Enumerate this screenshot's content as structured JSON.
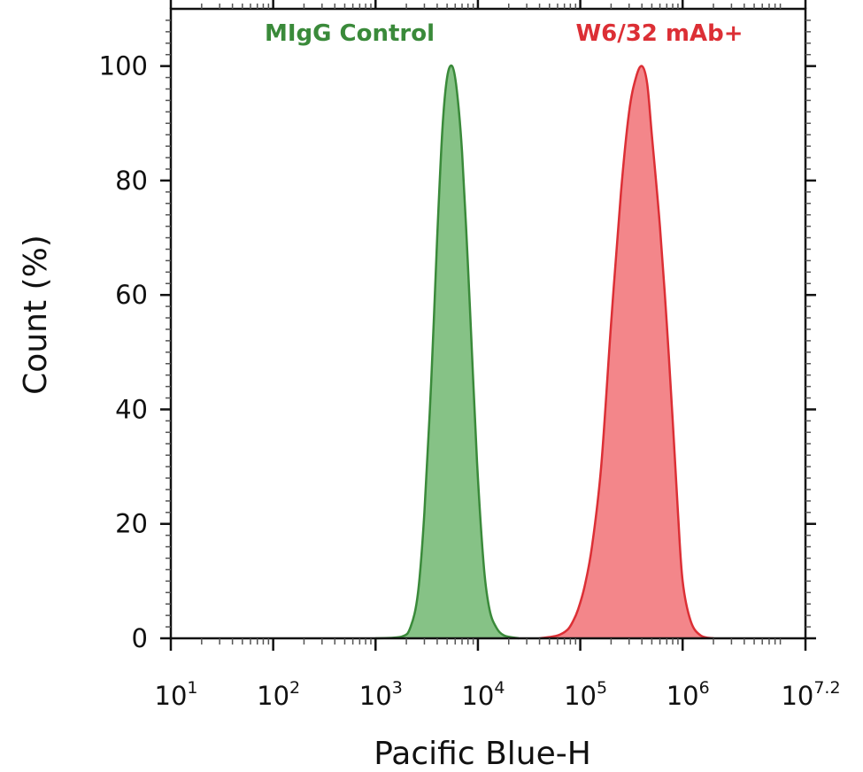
{
  "chart_data": {
    "type": "area",
    "xscale": "log",
    "xlabel": "Pacific Blue-H",
    "ylabel": "Count (%)",
    "xlim": [
      10,
      15848931.92
    ],
    "ylim": [
      0,
      110
    ],
    "x_ticks": [
      {
        "base": "10",
        "exp": "1"
      },
      {
        "base": "10",
        "exp": "2"
      },
      {
        "base": "10",
        "exp": "3"
      },
      {
        "base": "10",
        "exp": "4"
      },
      {
        "base": "10",
        "exp": "5"
      },
      {
        "base": "10",
        "exp": "6"
      },
      {
        "base": "10",
        "exp": "7.2"
      }
    ],
    "y_ticks": [
      "0",
      "20",
      "40",
      "60",
      "80",
      "100"
    ],
    "y_tick_values": [
      0,
      20,
      40,
      60,
      80,
      100
    ],
    "grid": false,
    "series": [
      {
        "name": "MIgG Control",
        "color": "#3a8a3a",
        "fill": "#86c286",
        "x": [
          1000,
          1800,
          2200,
          2600,
          3000,
          3500,
          4000,
          4500,
          5000,
          5600,
          6200,
          7000,
          8000,
          9000,
          10000,
          11500,
          13000,
          15000,
          18000,
          25000
        ],
        "y": [
          0,
          0.3,
          2,
          8,
          22,
          45,
          70,
          89,
          98,
          100,
          96,
          85,
          65,
          45,
          28,
          12,
          5,
          2,
          0.5,
          0
        ]
      },
      {
        "name": "W6/32 mAb+",
        "color": "#dc2f35",
        "fill": "#f3868a",
        "x": [
          40000,
          60000,
          75000,
          85000,
          95000,
          110000,
          130000,
          160000,
          200000,
          250000,
          300000,
          350000,
          400000,
          450000,
          500000,
          600000,
          700000,
          800000,
          900000,
          1000000,
          1200000,
          1500000,
          2000000
        ],
        "y": [
          0,
          0.5,
          1.5,
          3,
          5,
          9,
          16,
          30,
          55,
          78,
          92,
          98,
          100,
          97,
          88,
          72,
          55,
          38,
          22,
          10,
          3,
          0.5,
          0
        ]
      }
    ]
  }
}
